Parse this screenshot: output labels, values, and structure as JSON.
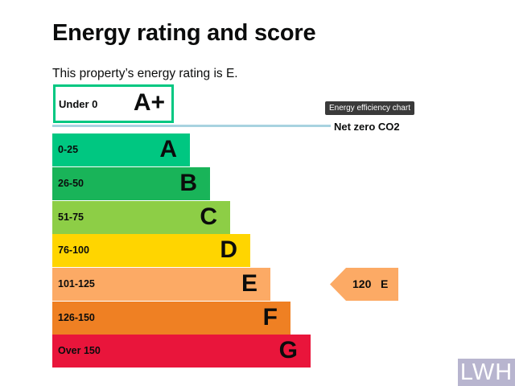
{
  "page": {
    "title": "Energy rating and score",
    "intro": "This property’s energy rating is E."
  },
  "tooltip": "Energy efficiency chart",
  "net_zero": {
    "label": "Net zero CO2"
  },
  "top_band": {
    "range": "Under 0",
    "letter": "A+",
    "color": "#00c781"
  },
  "bands": [
    {
      "range": "0-25",
      "letter": "A",
      "color": "#00c781"
    },
    {
      "range": "26-50",
      "letter": "B",
      "color": "#19b459"
    },
    {
      "range": "51-75",
      "letter": "C",
      "color": "#8dce46"
    },
    {
      "range": "76-100",
      "letter": "D",
      "color": "#ffd500"
    },
    {
      "range": "101-125",
      "letter": "E",
      "color": "#fcaa65"
    },
    {
      "range": "126-150",
      "letter": "F",
      "color": "#ef8023"
    },
    {
      "range": "Over 150",
      "letter": "G",
      "color": "#e9153b"
    }
  ],
  "current": {
    "score": "120",
    "letter": "E",
    "color": "#fcaa65"
  },
  "watermark": "LWH"
}
